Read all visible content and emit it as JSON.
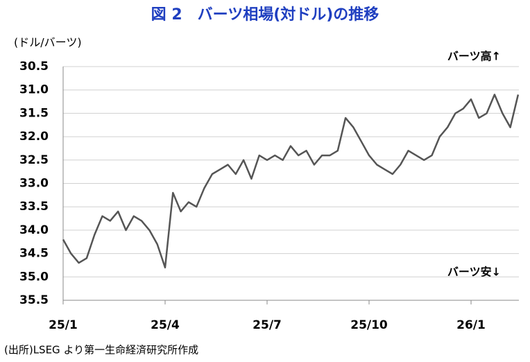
{
  "chart_data": {
    "type": "line",
    "title": "図 2　バーツ相場(対ドル)の推移",
    "y_label": "(ドル/バーツ)",
    "annotations": [
      "バーツ高↑",
      "バーツ安↓"
    ],
    "source": "(出所)LSEG より第一生命経済研究所作成",
    "categories": [
      "25/1",
      null,
      null,
      null,
      null,
      null,
      null,
      null,
      null,
      null,
      null,
      null,
      null,
      "25/4",
      null,
      null,
      null,
      null,
      null,
      null,
      null,
      null,
      null,
      null,
      null,
      null,
      "25/7",
      null,
      null,
      null,
      null,
      null,
      null,
      null,
      null,
      null,
      null,
      null,
      null,
      "25/10",
      null,
      null,
      null,
      null,
      null,
      null,
      null,
      null,
      null,
      null,
      null,
      null,
      "26/1",
      null,
      null,
      null,
      null,
      null,
      null
    ],
    "values": [
      34.2,
      34.5,
      34.7,
      34.6,
      34.1,
      33.7,
      33.8,
      33.6,
      34.0,
      33.7,
      33.8,
      34.0,
      34.3,
      34.8,
      33.2,
      33.6,
      33.4,
      33.5,
      33.1,
      32.8,
      32.7,
      32.6,
      32.8,
      32.5,
      32.9,
      32.4,
      32.5,
      32.4,
      32.5,
      32.2,
      32.4,
      32.3,
      32.6,
      32.4,
      32.4,
      32.3,
      31.6,
      31.8,
      32.1,
      32.4,
      32.6,
      32.7,
      32.8,
      32.6,
      32.3,
      32.4,
      32.5,
      32.4,
      32.0,
      31.8,
      31.5,
      31.4,
      31.2,
      31.6,
      31.5,
      31.1,
      31.5,
      31.8,
      31.1
    ],
    "color": "#555555",
    "ylim": [
      30.5,
      35.5
    ],
    "y_inverted": true,
    "yticks": [
      30.5,
      {
        "value": 31,
        "label": "31.0"
      },
      31.5,
      {
        "value": 32,
        "label": "32.0"
      },
      32.5,
      {
        "value": 33,
        "label": "33.0"
      },
      33.5,
      {
        "value": 34,
        "label": "34.0"
      },
      34.5,
      {
        "value": 35,
        "label": "35.0"
      },
      35.5
    ],
    "grid": true
  }
}
